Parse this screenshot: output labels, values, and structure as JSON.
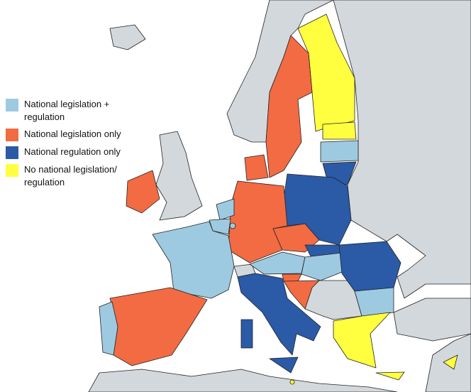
{
  "legend": {
    "items": [
      {
        "label": "National legislation + regulation",
        "color": "#9ecae1"
      },
      {
        "label": "National legislation only",
        "color": "#f26b43"
      },
      {
        "label": "National regulation only",
        "color": "#2b5aa6"
      },
      {
        "label": "No national legislation/ regulation",
        "color": "#ffff40"
      }
    ]
  }
}
